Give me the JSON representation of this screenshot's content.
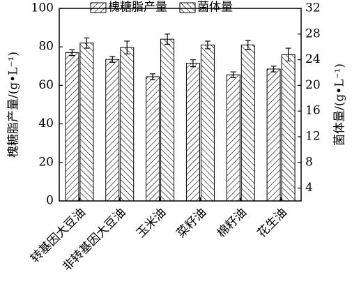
{
  "chart_data": {
    "type": "bar",
    "categories": [
      "转基因大豆油",
      "非转基因大豆油",
      "玉米油",
      "菜籽油",
      "棉籽油",
      "花生油"
    ],
    "y_label": "槐糖脂产量/(g•L⁻¹)",
    "y2_label": "菌体量/(g•L⁻¹)",
    "ylim": [
      0,
      100
    ],
    "yticks": [
      0,
      20,
      40,
      60,
      80,
      100
    ],
    "y2lim": [
      2,
      32
    ],
    "y2ticks": [
      4,
      8,
      12,
      16,
      20,
      24,
      28,
      32
    ],
    "legend": "top",
    "series": [
      {
        "name": "槐糖脂产量",
        "color": "#000000",
        "pattern": "forward",
        "values": [
          77,
          73.5,
          64.5,
          71.5,
          65.5,
          68.5
        ],
        "errors": [
          1.5,
          1.5,
          1.5,
          1.8,
          1.5,
          1.5
        ]
      },
      {
        "name": "菌体量",
        "color": "#000000",
        "pattern": "backward",
        "axis": "y2",
        "values": [
          26.6,
          25.9,
          27.2,
          26.3,
          26.3,
          24.8
        ],
        "errors": [
          0.8,
          1.0,
          0.8,
          0.6,
          0.7,
          1.0
        ]
      }
    ]
  }
}
